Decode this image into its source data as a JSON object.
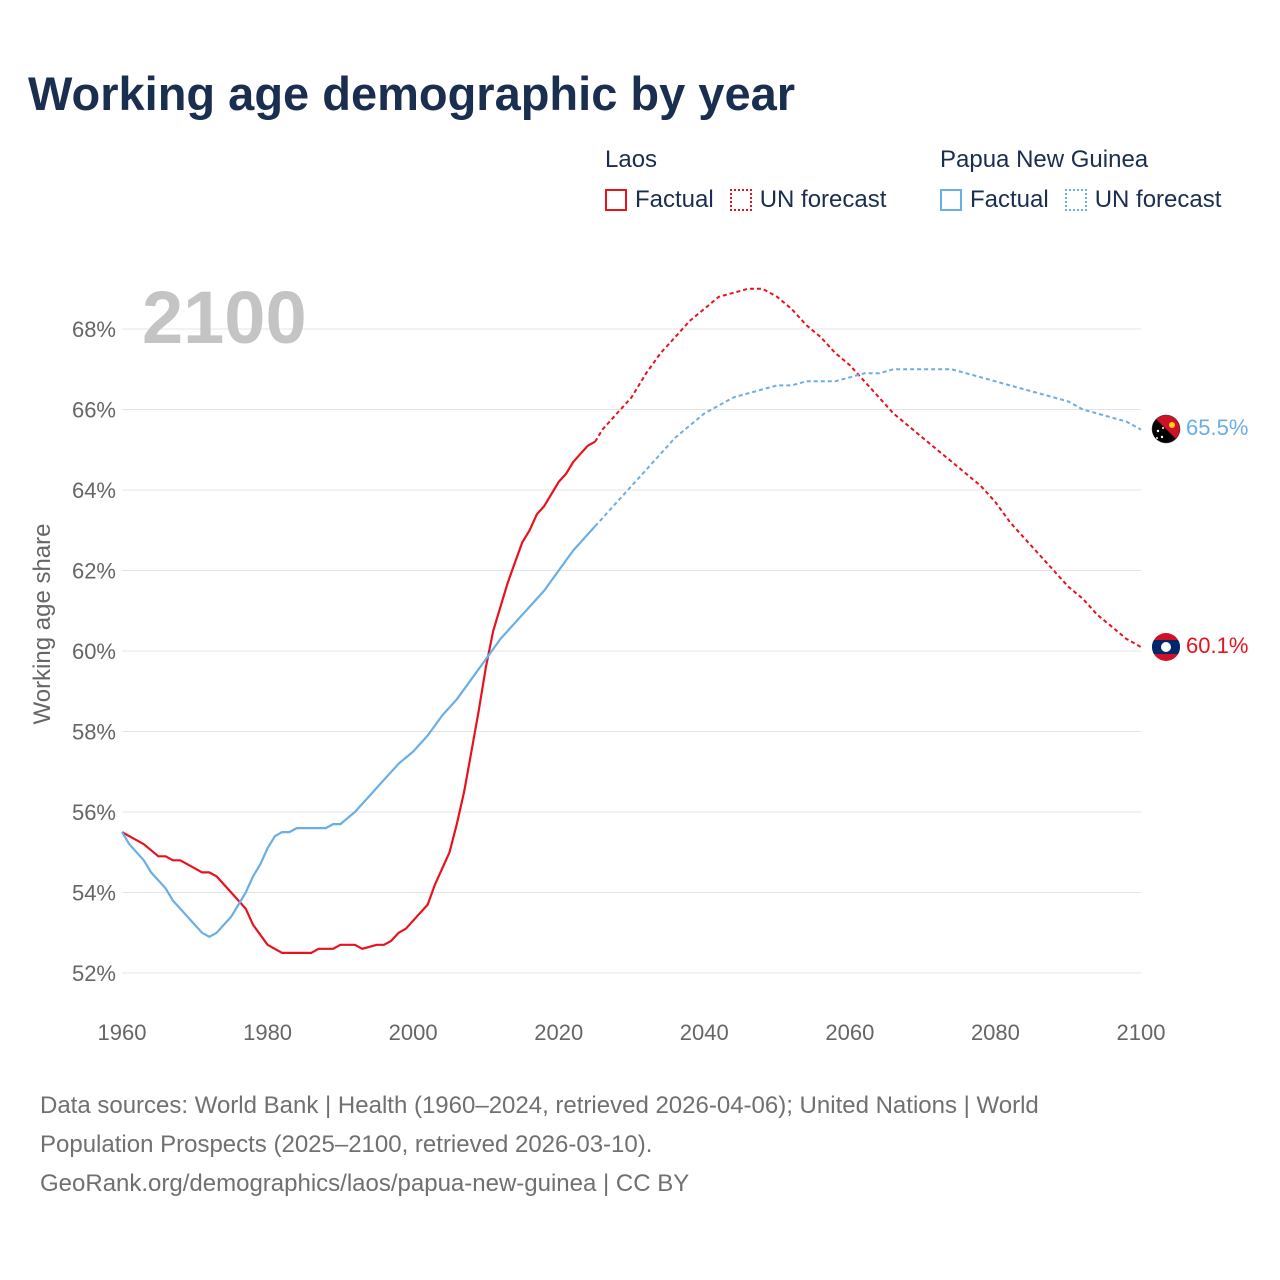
{
  "title": "Working age demographic by year",
  "legend": {
    "groups": [
      {
        "name": "Laos",
        "color": "#e8121f",
        "factual_label": "Factual",
        "forecast_label": "UN forecast"
      },
      {
        "name": "Papua New Guinea",
        "color": "#6aaee6",
        "factual_label": "Factual",
        "forecast_label": "UN forecast"
      }
    ]
  },
  "chart_data": {
    "type": "line",
    "title": "Working age demographic by year",
    "xlabel": "",
    "ylabel": "Working age share",
    "xlim": [
      1960,
      2100
    ],
    "ylim": [
      52,
      69
    ],
    "x_ticks": [
      1960,
      1980,
      2000,
      2020,
      2040,
      2060,
      2080,
      2100
    ],
    "y_ticks": [
      52,
      54,
      56,
      58,
      60,
      62,
      64,
      66,
      68
    ],
    "y_tick_format": "%",
    "current_year_label": "2100",
    "factual_end_year": 2025,
    "series": [
      {
        "name": "Laos",
        "color": "#e8121f",
        "end_value_label": "60.1%",
        "flag": "laos-flag",
        "x": [
          1960,
          1963,
          1965,
          1966,
          1967,
          1968,
          1970,
          1971,
          1972,
          1973,
          1975,
          1977,
          1978,
          1980,
          1982,
          1983,
          1985,
          1986,
          1987,
          1988,
          1989,
          1990,
          1992,
          1993,
          1995,
          1996,
          1997,
          1998,
          1999,
          2000,
          2002,
          2003,
          2004,
          2005,
          2006,
          2007,
          2008,
          2009,
          2010,
          2011,
          2012,
          2013,
          2014,
          2015,
          2016,
          2017,
          2018,
          2019,
          2020,
          2021,
          2022,
          2023,
          2024,
          2025,
          2026,
          2028,
          2030,
          2032,
          2034,
          2036,
          2038,
          2040,
          2042,
          2044,
          2046,
          2048,
          2050,
          2052,
          2054,
          2056,
          2058,
          2060,
          2062,
          2064,
          2066,
          2068,
          2070,
          2072,
          2074,
          2076,
          2078,
          2080,
          2082,
          2084,
          2086,
          2088,
          2090,
          2092,
          2094,
          2096,
          2098,
          2100
        ],
        "values": [
          55.5,
          55.2,
          54.9,
          54.9,
          54.8,
          54.8,
          54.6,
          54.5,
          54.5,
          54.4,
          54.0,
          53.6,
          53.2,
          52.7,
          52.5,
          52.5,
          52.5,
          52.5,
          52.6,
          52.6,
          52.6,
          52.7,
          52.7,
          52.6,
          52.7,
          52.7,
          52.8,
          53.0,
          53.1,
          53.3,
          53.7,
          54.2,
          54.6,
          55.0,
          55.7,
          56.5,
          57.5,
          58.5,
          59.6,
          60.5,
          61.1,
          61.7,
          62.2,
          62.7,
          63.0,
          63.4,
          63.6,
          63.9,
          64.2,
          64.4,
          64.7,
          64.9,
          65.1,
          65.2,
          65.5,
          65.9,
          66.3,
          66.9,
          67.4,
          67.8,
          68.2,
          68.5,
          68.8,
          68.9,
          69.0,
          69.0,
          68.8,
          68.5,
          68.1,
          67.8,
          67.4,
          67.1,
          66.7,
          66.3,
          65.9,
          65.6,
          65.3,
          65.0,
          64.7,
          64.4,
          64.1,
          63.7,
          63.2,
          62.8,
          62.4,
          62.0,
          61.6,
          61.3,
          60.9,
          60.6,
          60.3,
          60.1
        ]
      },
      {
        "name": "Papua New Guinea",
        "color": "#6aaee6",
        "end_value_label": "65.5%",
        "flag": "papua-new-guinea-flag",
        "x": [
          1960,
          1961,
          1962,
          1963,
          1964,
          1965,
          1966,
          1967,
          1968,
          1969,
          1970,
          1971,
          1972,
          1973,
          1974,
          1975,
          1976,
          1977,
          1978,
          1979,
          1980,
          1981,
          1982,
          1983,
          1984,
          1985,
          1986,
          1987,
          1988,
          1989,
          1990,
          1992,
          1994,
          1996,
          1998,
          2000,
          2002,
          2004,
          2006,
          2008,
          2010,
          2012,
          2014,
          2016,
          2018,
          2020,
          2022,
          2024,
          2025,
          2026,
          2028,
          2030,
          2032,
          2034,
          2036,
          2038,
          2040,
          2042,
          2044,
          2046,
          2048,
          2050,
          2052,
          2054,
          2056,
          2058,
          2060,
          2062,
          2064,
          2066,
          2068,
          2070,
          2072,
          2074,
          2076,
          2078,
          2080,
          2082,
          2084,
          2086,
          2088,
          2090,
          2092,
          2094,
          2096,
          2098,
          2100
        ],
        "values": [
          55.5,
          55.2,
          55.0,
          54.8,
          54.5,
          54.3,
          54.1,
          53.8,
          53.6,
          53.4,
          53.2,
          53.0,
          52.9,
          53.0,
          53.2,
          53.4,
          53.7,
          54.0,
          54.4,
          54.7,
          55.1,
          55.4,
          55.5,
          55.5,
          55.6,
          55.6,
          55.6,
          55.6,
          55.6,
          55.7,
          55.7,
          56.0,
          56.4,
          56.8,
          57.2,
          57.5,
          57.9,
          58.4,
          58.8,
          59.3,
          59.8,
          60.3,
          60.7,
          61.1,
          61.5,
          62.0,
          62.5,
          62.9,
          63.1,
          63.3,
          63.7,
          64.1,
          64.5,
          64.9,
          65.3,
          65.6,
          65.9,
          66.1,
          66.3,
          66.4,
          66.5,
          66.6,
          66.6,
          66.7,
          66.7,
          66.7,
          66.8,
          66.9,
          66.9,
          67.0,
          67.0,
          67.0,
          67.0,
          67.0,
          66.9,
          66.8,
          66.7,
          66.6,
          66.5,
          66.4,
          66.3,
          66.2,
          66.0,
          65.9,
          65.8,
          65.7,
          65.5
        ]
      }
    ]
  },
  "footer": {
    "line1": "Data sources: World Bank | Health (1960–2024, retrieved 2026-04-06); United Nations | World",
    "line2": "Population Prospects (2025–2100, retrieved 2026-03-10).",
    "line3": "GeoRank.org/demographics/laos/papua-new-guinea | CC BY"
  }
}
